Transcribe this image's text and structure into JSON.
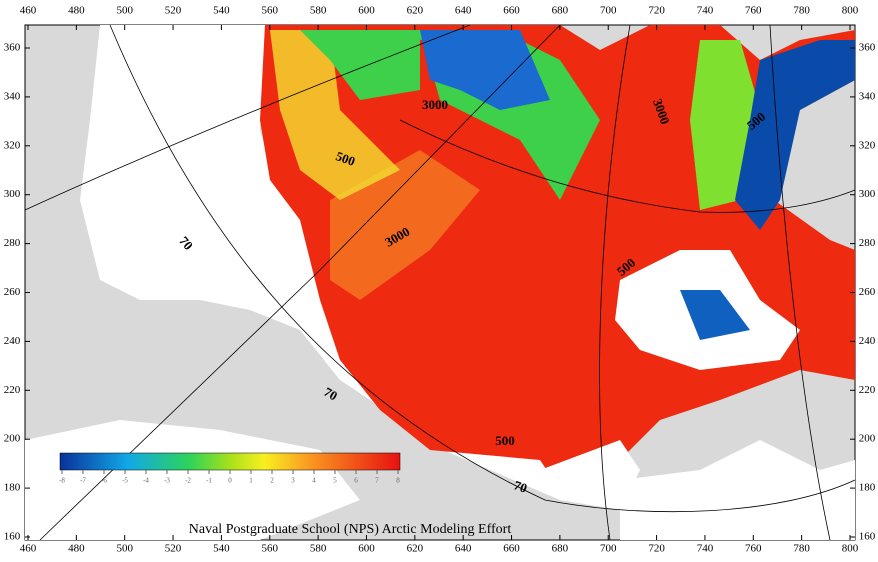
{
  "x_ticks": [
    460,
    480,
    500,
    520,
    540,
    560,
    580,
    600,
    620,
    640,
    660,
    680,
    700,
    720,
    740,
    760,
    780,
    800
  ],
  "y_ticks": [
    160,
    180,
    200,
    220,
    240,
    260,
    280,
    300,
    320,
    340,
    360
  ],
  "contour_labels": [
    "3000",
    "3000",
    "500",
    "500",
    "3000",
    "500",
    "70",
    "70",
    "70",
    "500"
  ],
  "colorbar": {
    "ticks": [
      -8,
      -7,
      -6,
      -5,
      -4,
      -3,
      -2,
      -1,
      0,
      1,
      2,
      3,
      4,
      5,
      6,
      7,
      8
    ]
  },
  "credit": "Naval Postgraduate School (NPS) Arctic Modeling Effort"
}
